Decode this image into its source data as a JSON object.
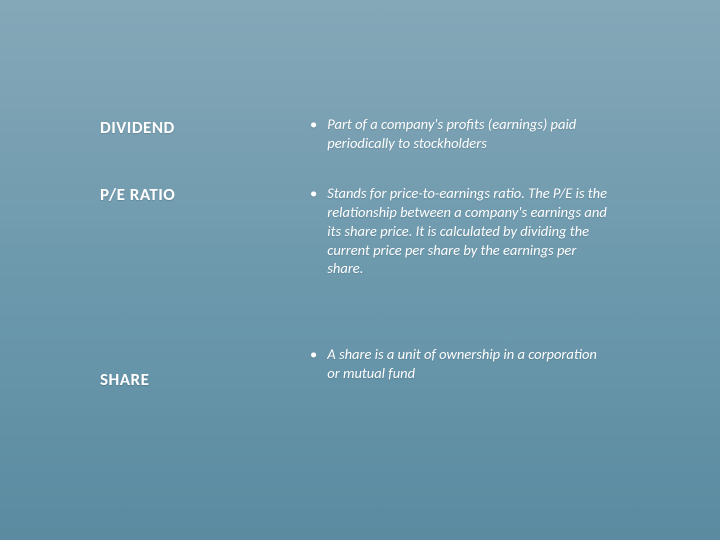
{
  "background": {
    "gradient_top": "#85a8b8",
    "gradient_mid": "#6d99ad",
    "gradient_bottom": "#5a8ba0"
  },
  "text_color": "#ffffff",
  "term_fontsize": 17,
  "def_fontsize": 14.5,
  "terms": {
    "dividend": {
      "label": "DIVIDEND"
    },
    "peratio": {
      "label": "P/E RATIO"
    },
    "share": {
      "label": "SHARE"
    }
  },
  "definitions": {
    "dividend": "Part of a company's profits (earnings) paid periodically to stockholders",
    "peratio": "Stands for price-to-earnings ratio. The P/E is the relationship between a company's earnings and its share price. It is calculated by dividing the current price per share by the earnings per share.",
    "share": "A share is a unit of ownership in a corporation or mutual fund"
  },
  "bullet_char": "•"
}
